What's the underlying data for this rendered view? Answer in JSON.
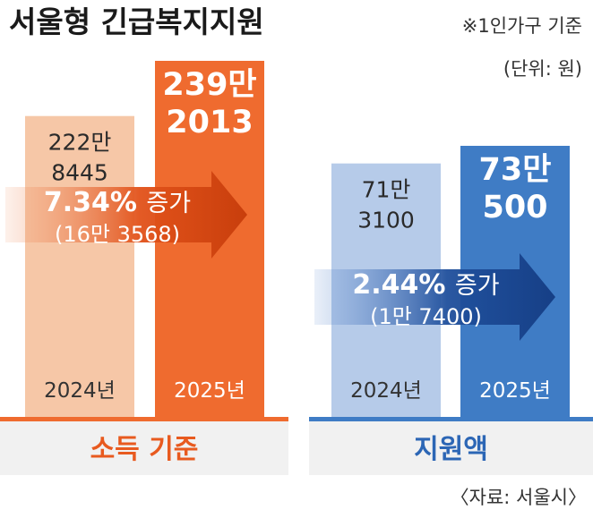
{
  "title": "서울형 긴급복지지원",
  "note": "※1인가구 기준",
  "unit": "(단위: 원)",
  "source": "〈자료: 서울시〉",
  "colors": {
    "orange_light": "#f6c7a7",
    "orange_dark": "#ef6b2f",
    "blue_light": "#b6cbe9",
    "blue_dark": "#3f7cc5",
    "orange_label_bg": "#f2f2f2",
    "blue_label_bg": "#f2f2f2",
    "orange_text": "#e85a1f",
    "blue_text": "#2c66b5"
  },
  "chart_data": [
    {
      "type": "bar",
      "title": "소득 기준",
      "categories": [
        "2024년",
        "2025년"
      ],
      "values": [
        2228445,
        2392013
      ],
      "value_labels": [
        [
          "222만",
          "8445"
        ],
        [
          "239만",
          "2013"
        ]
      ],
      "change": {
        "percent": "7.34%",
        "word": "증가",
        "amount": "(16만 3568)"
      }
    },
    {
      "type": "bar",
      "title": "지원액",
      "categories": [
        "2024년",
        "2025년"
      ],
      "values": [
        713100,
        730500
      ],
      "value_labels": [
        [
          "71만",
          "3100"
        ],
        [
          "73만",
          "500"
        ]
      ],
      "change": {
        "percent": "2.44%",
        "word": "증가",
        "amount": "(1만 7400)"
      }
    }
  ]
}
